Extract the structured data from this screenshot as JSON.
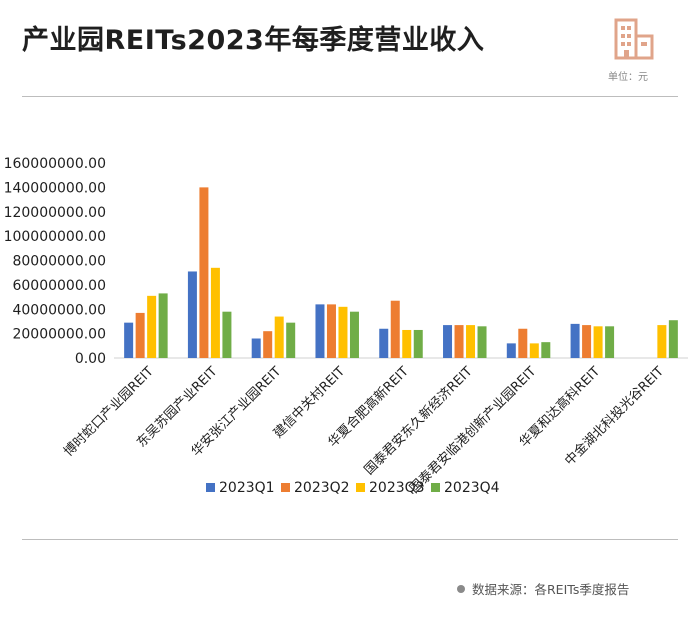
{
  "header": {
    "title": "产业园REITs2023年每季度营业收入",
    "unit": "单位：元"
  },
  "footer": {
    "source": "数据来源：各REITs季度报告"
  },
  "icon": "building-icon",
  "chart_data": {
    "type": "bar",
    "title": "产业园REITs2023年每季度营业收入",
    "xlabel": "",
    "ylabel": "",
    "ylim": [
      0,
      160000000
    ],
    "yticks": [
      "0.00",
      "20000000.00",
      "40000000.00",
      "60000000.00",
      "80000000.00",
      "100000000.00",
      "120000000.00",
      "140000000.00",
      "160000000.00"
    ],
    "grid": false,
    "legend_position": "bottom",
    "categories": [
      "博时蛇口产业园REIT",
      "东吴苏园产业REIT",
      "华安张江产业园REIT",
      "建信中关村REIT",
      "华夏合肥高新REIT",
      "国泰君安东久新经济REIT",
      "国泰君安临港创新产业园REIT",
      "华夏和达高科REIT",
      "中金湖北科投光谷REIT"
    ],
    "series": [
      {
        "name": "2023Q1",
        "color": "#4472C4",
        "values": [
          29000000,
          71000000,
          16000000,
          44000000,
          24000000,
          27000000,
          12000000,
          28000000,
          null
        ]
      },
      {
        "name": "2023Q2",
        "color": "#ED7D31",
        "values": [
          37000000,
          140000000,
          22000000,
          44000000,
          47000000,
          27000000,
          24000000,
          27000000,
          null
        ]
      },
      {
        "name": "2023Q3",
        "color": "#FFC000",
        "values": [
          51000000,
          74000000,
          34000000,
          42000000,
          23000000,
          27000000,
          12000000,
          26000000,
          27000000
        ]
      },
      {
        "name": "2023Q4",
        "color": "#70AD47",
        "values": [
          53000000,
          38000000,
          29000000,
          38000000,
          23000000,
          26000000,
          13000000,
          26000000,
          31000000
        ]
      }
    ]
  }
}
